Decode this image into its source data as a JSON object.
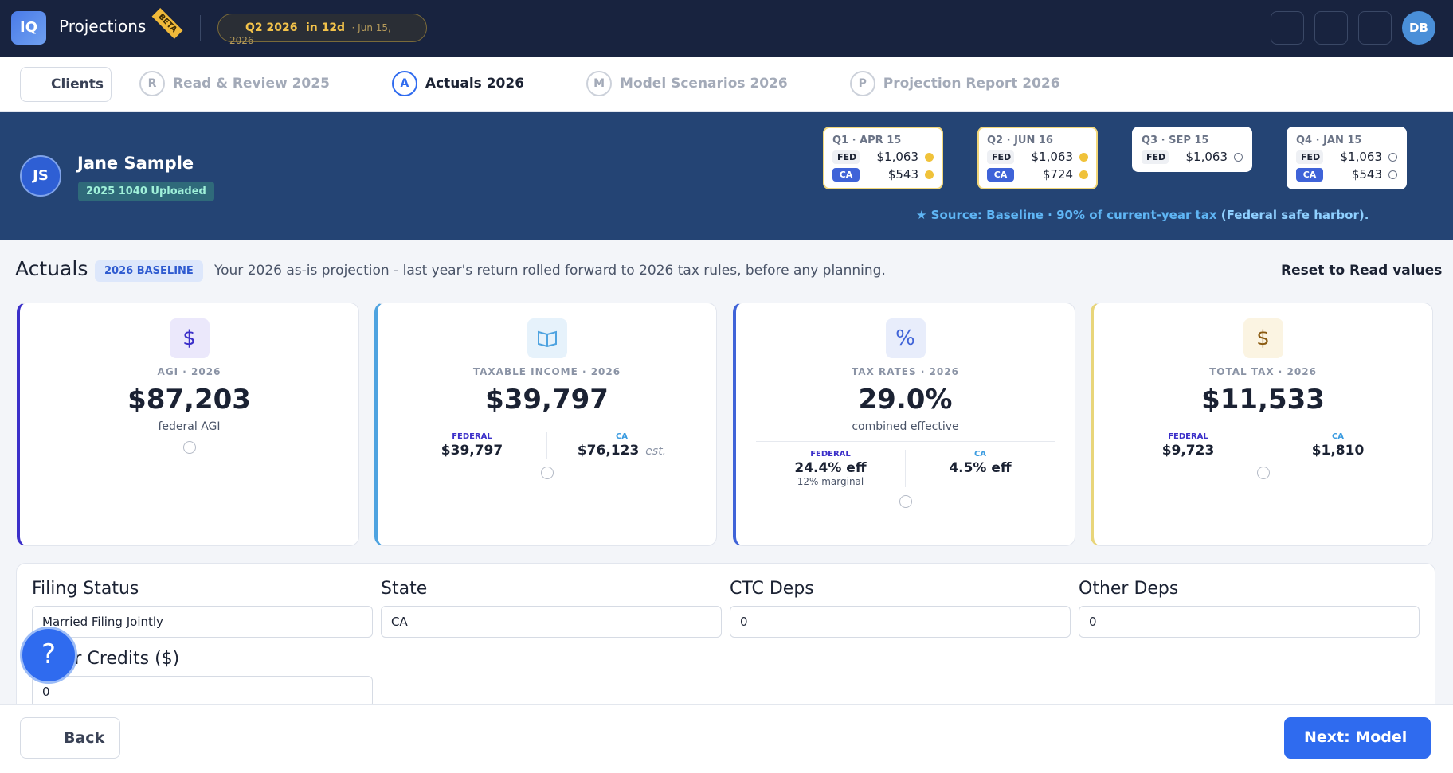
{
  "header": {
    "logo": "IQ",
    "app_title": "Projections",
    "badge": "BETA",
    "quarter": "Q2 2026",
    "due": "in 12d",
    "date": "· Jun 15, 2026",
    "avatar": "DB"
  },
  "steps": {
    "back": "Clients",
    "items": [
      {
        "letter": "R",
        "label": "Read & Review 2025",
        "state": "done"
      },
      {
        "letter": "A",
        "label": "Actuals 2026",
        "state": "active"
      },
      {
        "letter": "M",
        "label": "Model Scenarios 2026",
        "state": "todo"
      },
      {
        "letter": "P",
        "label": "Projection Report 2026",
        "state": "todo"
      }
    ]
  },
  "client": {
    "initials": "JS",
    "name": "Jane Sample",
    "status": "2025 1040 Uploaded"
  },
  "quarters": [
    {
      "title": "Q1 · APR 15",
      "rows": [
        {
          "tag": "FED",
          "amount": "$1,063",
          "status": "paid"
        },
        {
          "tag": "CA",
          "amount": "$543",
          "status": "paid"
        }
      ]
    },
    {
      "title": "Q2 · JUN 16",
      "rows": [
        {
          "tag": "FED",
          "amount": "$1,063",
          "status": "paid"
        },
        {
          "tag": "CA",
          "amount": "$724",
          "status": "paid"
        }
      ]
    },
    {
      "title": "Q3 · SEP 15",
      "rows": [
        {
          "tag": "FED",
          "amount": "$1,063",
          "status": "due"
        }
      ]
    },
    {
      "title": "Q4 · JAN 15",
      "rows": [
        {
          "tag": "FED",
          "amount": "$1,063",
          "status": "due"
        },
        {
          "tag": "CA",
          "amount": "$543",
          "status": "due"
        }
      ]
    }
  ],
  "source": {
    "text": "Source: Baseline · 90% of current-year tax",
    "bold": "(Federal safe harbor)."
  },
  "actuals": {
    "title": "Actuals",
    "badge": "2026 BASELINE",
    "description": "Your 2026 as-is projection - last year's return rolled forward to 2026 tax rules, before any planning.",
    "reset": "Reset to Read values"
  },
  "cards": [
    {
      "icon": "$",
      "label": "AGI · 2026",
      "value": "$87,203",
      "sub": "federal AGI",
      "color": "#3b2fc9",
      "icon_bg": "#ebe8fb"
    },
    {
      "icon": "book",
      "label": "TAXABLE INCOME · 2026",
      "value": "$39,797",
      "fed_label": "FEDERAL",
      "fed_value": "$39,797",
      "ca_label": "CA",
      "ca_value": "$76,123",
      "ca_note": "est.",
      "color": "#4ea3e0",
      "icon_bg": "#e6f2fb"
    },
    {
      "icon": "%",
      "label": "TAX RATES · 2026",
      "value": "29.0%",
      "sub": "combined effective",
      "fed_label": "FEDERAL",
      "fed_value": "24.4% eff",
      "fed_sub": "12% marginal",
      "ca_label": "CA",
      "ca_value": "4.5% eff",
      "color": "#3f63d8",
      "icon_bg": "#e8edfb"
    },
    {
      "icon": "$",
      "label": "TOTAL TAX · 2026",
      "value": "$11,533",
      "fed_label": "FEDERAL",
      "fed_value": "$9,723",
      "ca_label": "CA",
      "ca_value": "$1,810",
      "color": "#e8d57a",
      "icon_bg": "#fbf4e2"
    }
  ],
  "form": [
    {
      "label": "Filing Status",
      "value": "Married Filing Jointly",
      "kind": "select"
    },
    {
      "label": "State",
      "value": "CA",
      "kind": "select"
    },
    {
      "label": "CTC Deps",
      "value": "0",
      "kind": "input"
    },
    {
      "label": "Other Deps",
      "value": "0",
      "kind": "input"
    },
    {
      "label": "Other Credits ($)",
      "value": "0",
      "kind": "input"
    }
  ],
  "footer": {
    "back": "Back",
    "next": "Next: Model"
  }
}
